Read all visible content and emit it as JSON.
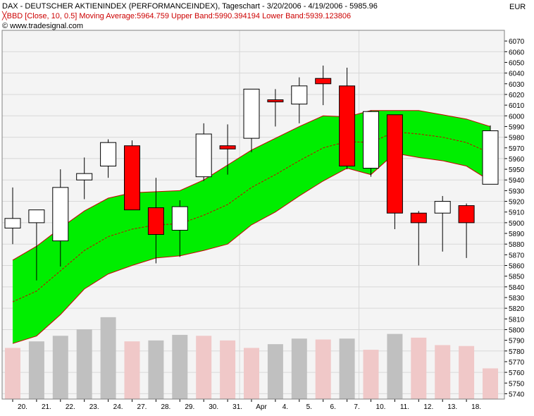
{
  "header": {
    "line1": "DAX - DEUTSCHER AKTIENINDEX (PERFORMANCEINDEX), Tageschart - 3/20/2006 - 4/19/2006 - 5985.96",
    "line2_icon": "bollinger-band-icon",
    "line2": "BBD [Close, 10, 0.5] Moving Average:5964.759 Upper Band:5990.394194 Lower Band:5939.123806",
    "line3": "© www.tradesignal.com"
  },
  "currency": "EUR",
  "colors": {
    "band_fill": "#00ee00",
    "band_edge": "#cc0000",
    "up_candle": "#ffffff",
    "down_candle": "#ff0000",
    "volume_up": "#c0c0c0",
    "volume_down": "#f0c8c8",
    "plot_bg": "#f4f4f4",
    "grid": "#d8d8d8"
  },
  "chart_data": {
    "type": "candlestick",
    "ylim": [
      5735,
      6080
    ],
    "y_ticks": [
      5740,
      5750,
      5760,
      5770,
      5780,
      5790,
      5800,
      5810,
      5820,
      5830,
      5840,
      5850,
      5860,
      5870,
      5880,
      5890,
      5900,
      5910,
      5920,
      5930,
      5940,
      5950,
      5960,
      5970,
      5980,
      5990,
      6000,
      6010,
      6020,
      6030,
      6040,
      6050,
      6060,
      6070
    ],
    "x_labels": [
      "20.",
      "21.",
      "22.",
      "23.",
      "24.",
      "27.",
      "28.",
      "29.",
      "30.",
      "31.",
      "Apr",
      "4.",
      "5.",
      "6.",
      "7.",
      "10.",
      "11.",
      "12.",
      "13.",
      "18."
    ],
    "candles": [
      {
        "o": 5895,
        "h": 5933,
        "l": 5880,
        "c": 5904
      },
      {
        "o": 5900,
        "h": 5912,
        "l": 5846,
        "c": 5912
      },
      {
        "o": 5883,
        "h": 5950,
        "l": 5859,
        "c": 5933
      },
      {
        "o": 5940,
        "h": 5961,
        "l": 5922,
        "c": 5946
      },
      {
        "o": 5953,
        "h": 5978,
        "l": 5942,
        "c": 5975
      },
      {
        "o": 5972,
        "h": 5977,
        "l": 5913,
        "c": 5912
      },
      {
        "o": 5914,
        "h": 5942,
        "l": 5862,
        "c": 5889
      },
      {
        "o": 5893,
        "h": 5921,
        "l": 5868,
        "c": 5915
      },
      {
        "o": 5943,
        "h": 5993,
        "l": 5939,
        "c": 5983
      },
      {
        "o": 5972,
        "h": 5992,
        "l": 5945,
        "c": 5969
      },
      {
        "o": 5979,
        "h": 6024,
        "l": 5966,
        "c": 6025
      },
      {
        "o": 6015,
        "h": 6025,
        "l": 5990,
        "c": 6013
      },
      {
        "o": 6011,
        "h": 6036,
        "l": 5993,
        "c": 6028
      },
      {
        "o": 6035,
        "h": 6047,
        "l": 6010,
        "c": 6030
      },
      {
        "o": 6028,
        "h": 6045,
        "l": 5950,
        "c": 5953
      },
      {
        "o": 5951,
        "h": 6005,
        "l": 5943,
        "c": 6004
      },
      {
        "o": 6001,
        "h": 6001,
        "l": 5894,
        "c": 5909
      },
      {
        "o": 5909,
        "h": 5911,
        "l": 5860,
        "c": 5900
      },
      {
        "o": 5909,
        "h": 5925,
        "l": 5873,
        "c": 5920
      },
      {
        "o": 5916,
        "h": 5918,
        "l": 5867,
        "c": 5900
      },
      {
        "o": 5936,
        "h": 5991,
        "l": 5936,
        "c": 5986
      }
    ],
    "moving_average": [
      5826,
      5836,
      5855,
      5874,
      5887,
      5894,
      5898,
      5899,
      5907,
      5917,
      5933,
      5945,
      5958,
      5970,
      5976,
      5975,
      5985,
      5983,
      5980,
      5975,
      5965
    ],
    "upper_band": [
      5865,
      5878,
      5895,
      5911,
      5923,
      5928,
      5929,
      5930,
      5940,
      5954,
      5968,
      5979,
      5990,
      6000,
      5999,
      6005,
      6005,
      6005,
      6001,
      5997,
      5990
    ],
    "lower_band": [
      5787,
      5794,
      5814,
      5838,
      5852,
      5860,
      5867,
      5869,
      5874,
      5880,
      5898,
      5910,
      5925,
      5939,
      5951,
      5945,
      5965,
      5961,
      5958,
      5953,
      5939
    ],
    "volume": [
      {
        "v": 55,
        "dir": "down"
      },
      {
        "v": 62,
        "dir": "up"
      },
      {
        "v": 68,
        "dir": "up"
      },
      {
        "v": 75,
        "dir": "up"
      },
      {
        "v": 88,
        "dir": "up"
      },
      {
        "v": 62,
        "dir": "down"
      },
      {
        "v": 63,
        "dir": "up"
      },
      {
        "v": 69,
        "dir": "up"
      },
      {
        "v": 68,
        "dir": "down"
      },
      {
        "v": 63,
        "dir": "down"
      },
      {
        "v": 55,
        "dir": "down"
      },
      {
        "v": 59,
        "dir": "up"
      },
      {
        "v": 65,
        "dir": "up"
      },
      {
        "v": 64,
        "dir": "down"
      },
      {
        "v": 65,
        "dir": "up"
      },
      {
        "v": 53,
        "dir": "down"
      },
      {
        "v": 70,
        "dir": "up"
      },
      {
        "v": 66,
        "dir": "down"
      },
      {
        "v": 58,
        "dir": "down"
      },
      {
        "v": 57,
        "dir": "down"
      },
      {
        "v": 33,
        "dir": "down"
      }
    ]
  }
}
